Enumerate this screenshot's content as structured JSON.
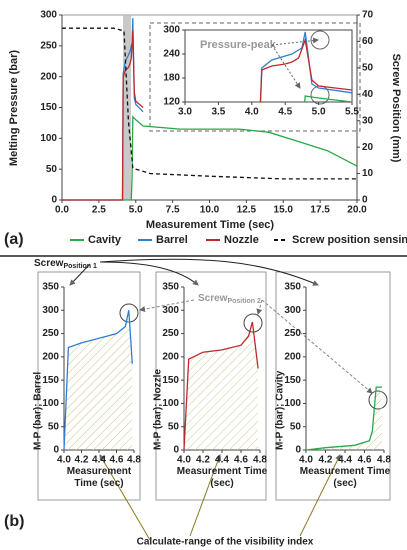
{
  "chart_data": [
    {
      "type": "line",
      "xlabel": "Measurement Time (sec)",
      "ylabel": "Melting Pressure (bar)",
      "y2label": "Screw Position (mm)",
      "xlim": [
        0,
        20
      ],
      "xticks": [
        {
          "value": 0,
          "label": "0.0"
        },
        {
          "value": 2.5,
          "label": "2.5"
        },
        {
          "value": 5,
          "label": "5.0"
        },
        {
          "value": 7.5,
          "label": "7.5"
        },
        {
          "value": 10,
          "label": "10.0"
        },
        {
          "value": 12.5,
          "label": "12.5"
        },
        {
          "value": 15,
          "label": "15.0"
        },
        {
          "value": 17.5,
          "label": "17.5"
        },
        {
          "value": 20,
          "label": "20.0"
        }
      ],
      "ylim": [
        0,
        300
      ],
      "yticks": [
        0,
        50,
        100,
        150,
        200,
        250,
        300
      ],
      "y2lim": [
        0,
        70
      ],
      "y2ticks": [
        0,
        10,
        20,
        30,
        40,
        50,
        60,
        70
      ],
      "series": [
        {
          "name": "Cavity",
          "color": "#2aa84a",
          "x": [
            0,
            4.7,
            4.75,
            4.8,
            5.0,
            5.5,
            8,
            12,
            14,
            16,
            18,
            20
          ],
          "values": [
            0,
            0,
            40,
            135,
            130,
            120,
            115,
            115,
            110,
            95,
            80,
            55
          ]
        },
        {
          "name": "Barrel",
          "color": "#2f7fd0",
          "x": [
            0,
            4.1,
            4.15,
            4.3,
            4.5,
            4.6,
            4.75,
            4.8,
            4.9,
            5.0,
            5.5
          ],
          "values": [
            0,
            0,
            205,
            225,
            235,
            240,
            255,
            295,
            165,
            155,
            143
          ]
        },
        {
          "name": "Nozzle",
          "color": "#c0282d",
          "x": [
            0,
            4.1,
            4.15,
            4.3,
            4.5,
            4.6,
            4.7,
            4.8,
            4.9,
            5.0,
            5.5
          ],
          "values": [
            0,
            0,
            200,
            210,
            215,
            220,
            230,
            275,
            175,
            160,
            150
          ]
        },
        {
          "name": "Screw position sensing",
          "color": "#111111",
          "dashed": true,
          "axis": "y2",
          "x": [
            0,
            3.5,
            4.2,
            4.5,
            4.8,
            6,
            10,
            15,
            20
          ],
          "values": [
            65,
            65,
            64,
            30,
            12,
            10,
            9,
            8,
            8
          ]
        }
      ],
      "inset": {
        "annotation": "Pressure-peak",
        "xlim": [
          3,
          5.5
        ],
        "xticks": [
          {
            "value": 3,
            "label": "3.0"
          },
          {
            "value": 3.5,
            "label": "3.5"
          },
          {
            "value": 4,
            "label": "4.0"
          },
          {
            "value": 4.5,
            "label": "4.5"
          },
          {
            "value": 5,
            "label": "5.0"
          },
          {
            "value": 5.5,
            "label": "5.5"
          }
        ],
        "ylim": [
          120,
          300
        ],
        "yticks": [
          120,
          180,
          240,
          300
        ]
      }
    },
    {
      "type": "line",
      "xlabel": "Measurement Time (sec)",
      "ylabel": "M-P (bar); Barrel",
      "xlim": [
        4,
        4.8
      ],
      "xticks": [
        {
          "value": 4,
          "label": "4.0"
        },
        4.2,
        4.4,
        4.6,
        4.8
      ],
      "ylim": [
        0,
        350
      ],
      "yticks": [
        0,
        50,
        100,
        150,
        200,
        250,
        300,
        350
      ],
      "series": [
        {
          "color": "#2f7fd0",
          "x": [
            4.0,
            4.05,
            4.2,
            4.4,
            4.6,
            4.7,
            4.74,
            4.78
          ],
          "values": [
            0,
            220,
            230,
            240,
            250,
            265,
            300,
            185
          ]
        }
      ]
    },
    {
      "type": "line",
      "xlabel": "Measurement Time (sec)",
      "ylabel": "M-P (bar); Nozzle",
      "xlim": [
        4,
        4.8
      ],
      "xticks": [
        {
          "value": 4,
          "label": "4.0"
        },
        4.2,
        4.4,
        4.6,
        4.8
      ],
      "ylim": [
        0,
        350
      ],
      "yticks": [
        0,
        50,
        100,
        150,
        200,
        250,
        300,
        350
      ],
      "series": [
        {
          "color": "#c0282d",
          "x": [
            4.0,
            4.05,
            4.2,
            4.4,
            4.6,
            4.68,
            4.72,
            4.78
          ],
          "values": [
            0,
            195,
            210,
            215,
            225,
            245,
            275,
            175
          ]
        }
      ]
    },
    {
      "type": "line",
      "xlabel": "Measurement Time (sec)",
      "ylabel": "M-P (bar); Cavity",
      "xlim": [
        4,
        4.8
      ],
      "xticks": [
        {
          "value": 4,
          "label": "4.0"
        },
        4.2,
        4.4,
        4.6,
        4.8
      ],
      "ylim": [
        0,
        350
      ],
      "yticks": [
        0,
        50,
        100,
        150,
        200,
        250,
        300,
        350
      ],
      "series": [
        {
          "color": "#2aa84a",
          "x": [
            4.0,
            4.2,
            4.5,
            4.65,
            4.68,
            4.72,
            4.78
          ],
          "values": [
            0,
            5,
            10,
            20,
            40,
            135,
            135
          ]
        }
      ]
    }
  ],
  "panel_labels": [
    "(a)",
    "(b)"
  ],
  "annotations": {
    "screw1": {
      "text": "Screw",
      "sub": "Position 1"
    },
    "screw2": {
      "text": "Screw",
      "sub": "Position 2"
    },
    "range": "Calculate-range of the visibility index"
  }
}
